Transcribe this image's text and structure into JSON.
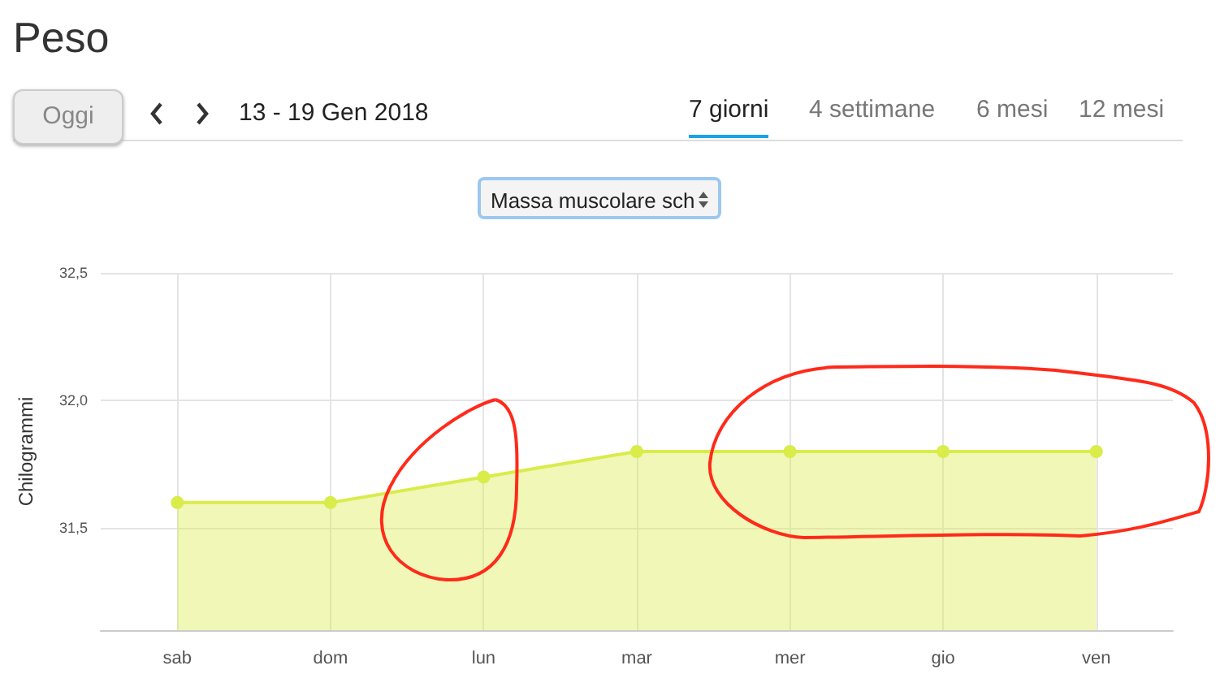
{
  "chart_data": {
    "type": "area",
    "title": "Peso",
    "ylabel": "Chilogrammi",
    "annotations": [
      "Oggi",
      "13 - 19 Gen 2018",
      "7 giorni",
      "4 settimane",
      "6 mesi",
      "12 mesi",
      "Massa muscolare sch"
    ],
    "categories": [
      "sab",
      "dom",
      "lun",
      "mar",
      "mer",
      "gio",
      "ven"
    ],
    "series": [
      {
        "color": "#d9ec4a",
        "values": [
          31.6,
          31.6,
          31.7,
          31.8,
          31.8,
          31.8,
          31.8
        ]
      }
    ],
    "ylim": [
      31.1,
      32.5
    ],
    "yticks": [
      {
        "value": 31.5,
        "label": "31,5"
      },
      {
        "value": 32.0,
        "label": "32,0"
      },
      {
        "value": 32.5,
        "label": "32,5"
      }
    ],
    "grid": true,
    "marker": "circle"
  }
}
